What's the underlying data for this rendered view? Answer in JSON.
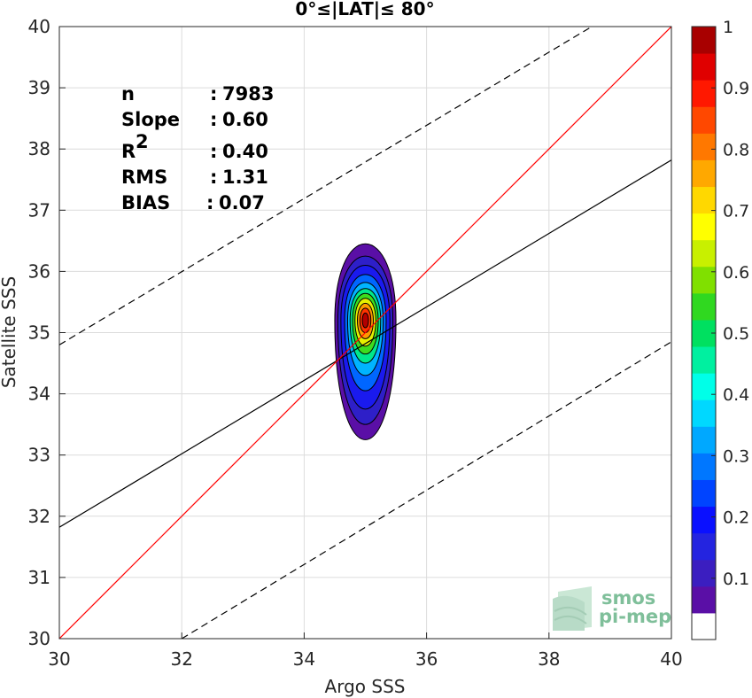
{
  "chart_data": {
    "type": "scatter",
    "title": "0°≤|LAT|≤ 80°",
    "xlabel": "Argo SSS",
    "ylabel": "Satellite SSS",
    "xlim": [
      30,
      40
    ],
    "ylim": [
      30,
      40
    ],
    "xticks": [
      30,
      32,
      34,
      36,
      38,
      40
    ],
    "yticks": [
      30,
      31,
      32,
      33,
      34,
      35,
      36,
      37,
      38,
      39,
      40
    ],
    "grid": true,
    "stats": [
      {
        "label": "n",
        "sep": ":",
        "value": "7983"
      },
      {
        "label": "Slope",
        "sep": ":",
        "value": "0.60"
      },
      {
        "label": "R",
        "sup": "2",
        "sep": ":",
        "value": "0.40"
      },
      {
        "label": "RMS",
        "sep": ":",
        "value": "1.31"
      },
      {
        "label": "BIAS",
        "sep": ":",
        "value": "0.07"
      }
    ],
    "lines": {
      "identity": {
        "x": [
          30,
          40
        ],
        "y": [
          30,
          40
        ],
        "color": "#ff0000"
      },
      "regression": {
        "x": [
          30,
          40
        ],
        "y": [
          31.82,
          37.82
        ],
        "color": "#000000"
      },
      "upper_bound": {
        "x": [
          30,
          38.7
        ],
        "y": [
          34.8,
          40
        ],
        "color": "#000000",
        "style": "dashed"
      },
      "lower_bound": {
        "x": [
          32,
          40
        ],
        "y": [
          30,
          34.85
        ],
        "color": "#000000",
        "style": "dashed"
      }
    },
    "density_contours": {
      "center": [
        35.0,
        35.2
      ],
      "levels": [
        {
          "level": 0.05,
          "dx": 0.5,
          "dy_up": 1.25,
          "dy_down": 1.95,
          "color": "#5a0fa6"
        },
        {
          "level": 0.1,
          "dx": 0.45,
          "dy_up": 1.05,
          "dy_down": 1.7,
          "color": "#2e1fc8"
        },
        {
          "level": 0.15,
          "dx": 0.4,
          "dy_up": 0.9,
          "dy_down": 1.45,
          "color": "#1a1aee"
        },
        {
          "level": 0.25,
          "dx": 0.34,
          "dy_up": 0.75,
          "dy_down": 1.15,
          "color": "#0066ff"
        },
        {
          "level": 0.35,
          "dx": 0.29,
          "dy_up": 0.62,
          "dy_down": 0.9,
          "color": "#00b4ff"
        },
        {
          "level": 0.45,
          "dx": 0.25,
          "dy_up": 0.52,
          "dy_down": 0.7,
          "color": "#00e88a"
        },
        {
          "level": 0.55,
          "dx": 0.21,
          "dy_up": 0.44,
          "dy_down": 0.55,
          "color": "#3ddc1e"
        },
        {
          "level": 0.65,
          "dx": 0.17,
          "dy_up": 0.36,
          "dy_down": 0.42,
          "color": "#e6f000"
        },
        {
          "level": 0.75,
          "dx": 0.13,
          "dy_up": 0.28,
          "dy_down": 0.3,
          "color": "#ff9900"
        },
        {
          "level": 0.85,
          "dx": 0.09,
          "dy_up": 0.2,
          "dy_down": 0.2,
          "color": "#ff3300"
        },
        {
          "level": 0.95,
          "dx": 0.05,
          "dy_up": 0.12,
          "dy_down": 0.12,
          "color": "#b30000"
        }
      ]
    },
    "colorbar": {
      "ticks": [
        "0.1",
        "0.2",
        "0.3",
        "0.4",
        "0.5",
        "0.6",
        "0.7",
        "0.8",
        "0.9",
        "1"
      ],
      "tick_values": [
        0.1,
        0.2,
        0.3,
        0.4,
        0.5,
        0.6,
        0.7,
        0.8,
        0.9,
        1.0
      ],
      "range": [
        0,
        1
      ],
      "segments": [
        "#ffffff",
        "#5a0fa6",
        "#3b1ec0",
        "#2424e0",
        "#0a10ff",
        "#0044ff",
        "#0077ff",
        "#00a8ff",
        "#00d8ff",
        "#00ffe8",
        "#00f0a0",
        "#00e060",
        "#30d820",
        "#80e000",
        "#c8f000",
        "#ffff00",
        "#ffd800",
        "#ffa800",
        "#ff7800",
        "#ff4800",
        "#ff1800",
        "#e00000",
        "#a80000"
      ]
    },
    "logo": {
      "line1": "smos",
      "line2": "pi-mep"
    }
  }
}
